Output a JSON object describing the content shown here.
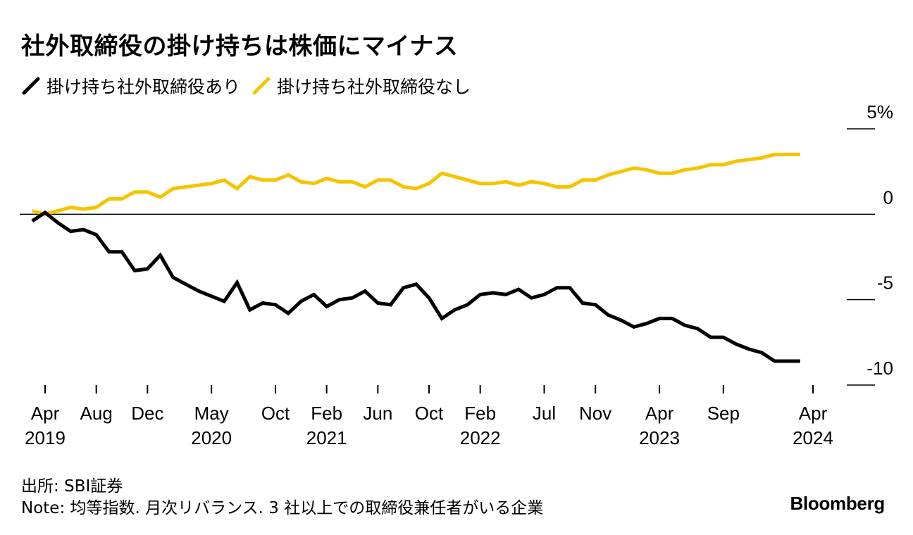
{
  "title": "社外取締役の掛け持ちは株価にマイナス",
  "source": "出所: SBI証券",
  "note": "Note: 均等指数. 月次リバランス. 3 社以上での取締役兼任者がいる企業",
  "brand": "Bloomberg",
  "colors": {
    "with": "#000000",
    "without": "#f5c400",
    "axis": "#000000"
  },
  "chart_data": {
    "type": "line",
    "x_start": "2019-03",
    "x_end": "2024-04",
    "ylim": [
      -10,
      5
    ],
    "y_ticks": [
      {
        "value": 5,
        "label": "5%"
      },
      {
        "value": 0,
        "label": "0"
      },
      {
        "value": -5,
        "label": "-5"
      },
      {
        "value": -10,
        "label": "-10"
      }
    ],
    "x_ticks": [
      {
        "date": "2019-04",
        "month": "Apr",
        "year": "2019"
      },
      {
        "date": "2019-08",
        "month": "Aug",
        "year": ""
      },
      {
        "date": "2019-12",
        "month": "Dec",
        "year": ""
      },
      {
        "date": "2020-05",
        "month": "May",
        "year": "2020"
      },
      {
        "date": "2020-10",
        "month": "Oct",
        "year": ""
      },
      {
        "date": "2021-02",
        "month": "Feb",
        "year": "2021"
      },
      {
        "date": "2021-06",
        "month": "Jun",
        "year": ""
      },
      {
        "date": "2021-10",
        "month": "Oct",
        "year": ""
      },
      {
        "date": "2022-02",
        "month": "Feb",
        "year": "2022"
      },
      {
        "date": "2022-07",
        "month": "Jul",
        "year": ""
      },
      {
        "date": "2022-11",
        "month": "Nov",
        "year": ""
      },
      {
        "date": "2023-04",
        "month": "Apr",
        "year": "2023"
      },
      {
        "date": "2023-09",
        "month": "Sep",
        "year": ""
      },
      {
        "date": "2024-04",
        "month": "Apr",
        "year": "2024"
      }
    ],
    "series": [
      {
        "name": "掛け持ち社外取締役あり",
        "color": "#000000",
        "points": [
          [
            "2019-03",
            -0.4
          ],
          [
            "2019-04",
            0.1
          ],
          [
            "2019-05",
            -0.5
          ],
          [
            "2019-06",
            -1.0
          ],
          [
            "2019-07",
            -0.9
          ],
          [
            "2019-08",
            -1.2
          ],
          [
            "2019-09",
            -2.2
          ],
          [
            "2019-10",
            -2.2
          ],
          [
            "2019-11",
            -3.3
          ],
          [
            "2019-12",
            -3.2
          ],
          [
            "2020-01",
            -2.4
          ],
          [
            "2020-02",
            -3.7
          ],
          [
            "2020-03",
            -4.1
          ],
          [
            "2020-04",
            -4.5
          ],
          [
            "2020-05",
            -4.8
          ],
          [
            "2020-06",
            -5.1
          ],
          [
            "2020-07",
            -4.0
          ],
          [
            "2020-08",
            -5.6
          ],
          [
            "2020-09",
            -5.2
          ],
          [
            "2020-10",
            -5.3
          ],
          [
            "2020-11",
            -5.8
          ],
          [
            "2020-12",
            -5.1
          ],
          [
            "2021-01",
            -4.7
          ],
          [
            "2021-02",
            -5.4
          ],
          [
            "2021-03",
            -5.0
          ],
          [
            "2021-04",
            -4.9
          ],
          [
            "2021-05",
            -4.5
          ],
          [
            "2021-06",
            -5.2
          ],
          [
            "2021-07",
            -5.3
          ],
          [
            "2021-08",
            -4.3
          ],
          [
            "2021-09",
            -4.1
          ],
          [
            "2021-10",
            -4.9
          ],
          [
            "2021-11",
            -6.1
          ],
          [
            "2021-12",
            -5.6
          ],
          [
            "2022-01",
            -5.3
          ],
          [
            "2022-02",
            -4.7
          ],
          [
            "2022-03",
            -4.6
          ],
          [
            "2022-04",
            -4.7
          ],
          [
            "2022-05",
            -4.4
          ],
          [
            "2022-06",
            -4.9
          ],
          [
            "2022-07",
            -4.7
          ],
          [
            "2022-08",
            -4.3
          ],
          [
            "2022-09",
            -4.3
          ],
          [
            "2022-10",
            -5.2
          ],
          [
            "2022-11",
            -5.3
          ],
          [
            "2022-12",
            -5.9
          ],
          [
            "2023-01",
            -6.2
          ],
          [
            "2023-02",
            -6.6
          ],
          [
            "2023-03",
            -6.4
          ],
          [
            "2023-04",
            -6.1
          ],
          [
            "2023-05",
            -6.1
          ],
          [
            "2023-06",
            -6.5
          ],
          [
            "2023-07",
            -6.7
          ],
          [
            "2023-08",
            -7.2
          ],
          [
            "2023-09",
            -7.2
          ],
          [
            "2023-10",
            -7.6
          ],
          [
            "2023-11",
            -7.9
          ],
          [
            "2023-12",
            -8.1
          ],
          [
            "2024-01",
            -8.6
          ],
          [
            "2024-02",
            -8.6
          ],
          [
            "2024-03",
            -8.6
          ]
        ]
      },
      {
        "name": "掛け持ち社外取締役なし",
        "color": "#f5c400",
        "points": [
          [
            "2019-03",
            0.2
          ],
          [
            "2019-04",
            0.0
          ],
          [
            "2019-05",
            0.2
          ],
          [
            "2019-06",
            0.4
          ],
          [
            "2019-07",
            0.3
          ],
          [
            "2019-08",
            0.4
          ],
          [
            "2019-09",
            0.9
          ],
          [
            "2019-10",
            0.9
          ],
          [
            "2019-11",
            1.3
          ],
          [
            "2019-12",
            1.3
          ],
          [
            "2020-01",
            1.0
          ],
          [
            "2020-02",
            1.5
          ],
          [
            "2020-03",
            1.6
          ],
          [
            "2020-04",
            1.7
          ],
          [
            "2020-05",
            1.8
          ],
          [
            "2020-06",
            2.0
          ],
          [
            "2020-07",
            1.5
          ],
          [
            "2020-08",
            2.2
          ],
          [
            "2020-09",
            2.0
          ],
          [
            "2020-10",
            2.0
          ],
          [
            "2020-11",
            2.3
          ],
          [
            "2020-12",
            1.9
          ],
          [
            "2021-01",
            1.8
          ],
          [
            "2021-02",
            2.1
          ],
          [
            "2021-03",
            1.9
          ],
          [
            "2021-04",
            1.9
          ],
          [
            "2021-05",
            1.6
          ],
          [
            "2021-06",
            2.0
          ],
          [
            "2021-07",
            2.0
          ],
          [
            "2021-08",
            1.6
          ],
          [
            "2021-09",
            1.5
          ],
          [
            "2021-10",
            1.8
          ],
          [
            "2021-11",
            2.4
          ],
          [
            "2021-12",
            2.2
          ],
          [
            "2022-01",
            2.0
          ],
          [
            "2022-02",
            1.8
          ],
          [
            "2022-03",
            1.8
          ],
          [
            "2022-04",
            1.9
          ],
          [
            "2022-05",
            1.7
          ],
          [
            "2022-06",
            1.9
          ],
          [
            "2022-07",
            1.8
          ],
          [
            "2022-08",
            1.6
          ],
          [
            "2022-09",
            1.6
          ],
          [
            "2022-10",
            2.0
          ],
          [
            "2022-11",
            2.0
          ],
          [
            "2022-12",
            2.3
          ],
          [
            "2023-01",
            2.5
          ],
          [
            "2023-02",
            2.7
          ],
          [
            "2023-03",
            2.6
          ],
          [
            "2023-04",
            2.4
          ],
          [
            "2023-05",
            2.4
          ],
          [
            "2023-06",
            2.6
          ],
          [
            "2023-07",
            2.7
          ],
          [
            "2023-08",
            2.9
          ],
          [
            "2023-09",
            2.9
          ],
          [
            "2023-10",
            3.1
          ],
          [
            "2023-11",
            3.2
          ],
          [
            "2023-12",
            3.3
          ],
          [
            "2024-01",
            3.5
          ],
          [
            "2024-02",
            3.5
          ],
          [
            "2024-03",
            3.5
          ]
        ]
      }
    ]
  }
}
